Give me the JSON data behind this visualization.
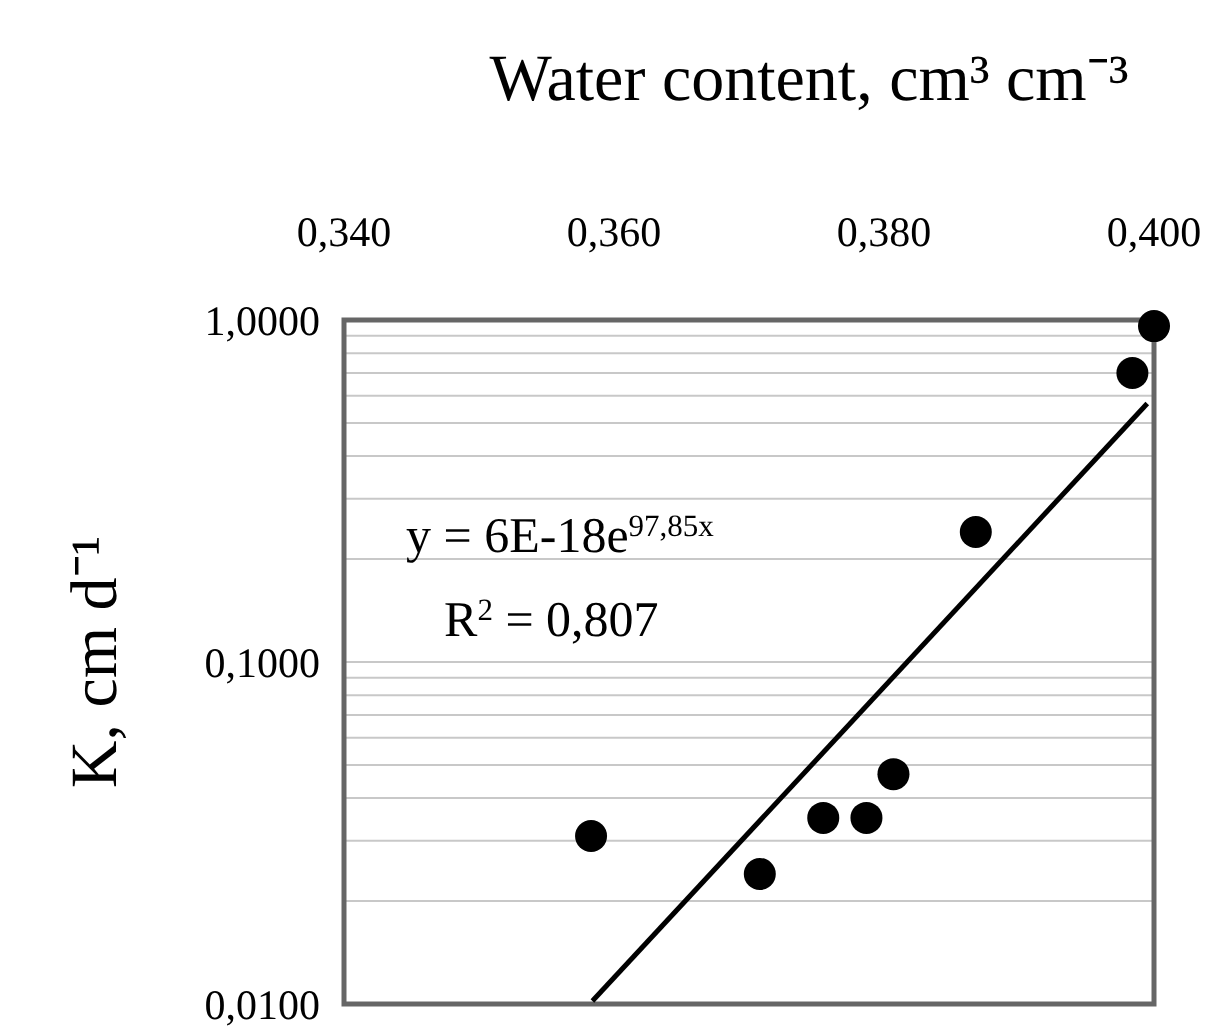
{
  "chart_data": {
    "type": "scatter",
    "xlabel": "Water content, cm³ cm⁻³",
    "ylabel": "K, cm d⁻¹",
    "xlim": [
      0.34,
      0.4
    ],
    "xticks": [
      {
        "value": 0.34,
        "label": "0,340"
      },
      {
        "value": 0.36,
        "label": "0,360"
      },
      {
        "value": 0.38,
        "label": "0,380"
      },
      {
        "value": 0.4,
        "label": "0,400"
      }
    ],
    "ylim": [
      0.01,
      1
    ],
    "log": "y",
    "yticks": [
      {
        "value": 0.01,
        "label": "0,0100"
      },
      {
        "value": 0.02,
        "label": null
      },
      {
        "value": 0.03,
        "label": null
      },
      {
        "value": 0.04,
        "label": null
      },
      {
        "value": 0.05,
        "label": null
      },
      {
        "value": 0.06,
        "label": null
      },
      {
        "value": 0.07,
        "label": null
      },
      {
        "value": 0.08,
        "label": null
      },
      {
        "value": 0.09,
        "label": null
      },
      {
        "value": 0.1,
        "label": "0,1000"
      },
      {
        "value": 0.2,
        "label": null
      },
      {
        "value": 0.3,
        "label": null
      },
      {
        "value": 0.4,
        "label": null
      },
      {
        "value": 0.5,
        "label": null
      },
      {
        "value": 0.6,
        "label": null
      },
      {
        "value": 0.7,
        "label": null
      },
      {
        "value": 0.8,
        "label": null
      },
      {
        "value": 0.9,
        "label": null
      },
      {
        "value": 1,
        "label": "1,0000"
      }
    ],
    "grid": "y",
    "marker": "circle",
    "series": [
      {
        "color": "#000000",
        "x": [
          0.3583,
          0.3708,
          0.3755,
          0.3787,
          0.3807,
          0.3868,
          0.3984,
          0.4
        ],
        "values": [
          0.031,
          0.024,
          0.035,
          0.035,
          0.047,
          0.24,
          0.7,
          0.96
        ]
      },
      {
        "type": "line",
        "color": "#000000",
        "marker": "none",
        "line_style": "solid",
        "x": [
          0.3584,
          0.3995
        ],
        "values": [
          0.0102,
          0.57
        ]
      }
    ],
    "annotations": [
      "y = 6E-18e$^{97,85x}$",
      "R$^{2}$ = 0,807"
    ]
  }
}
